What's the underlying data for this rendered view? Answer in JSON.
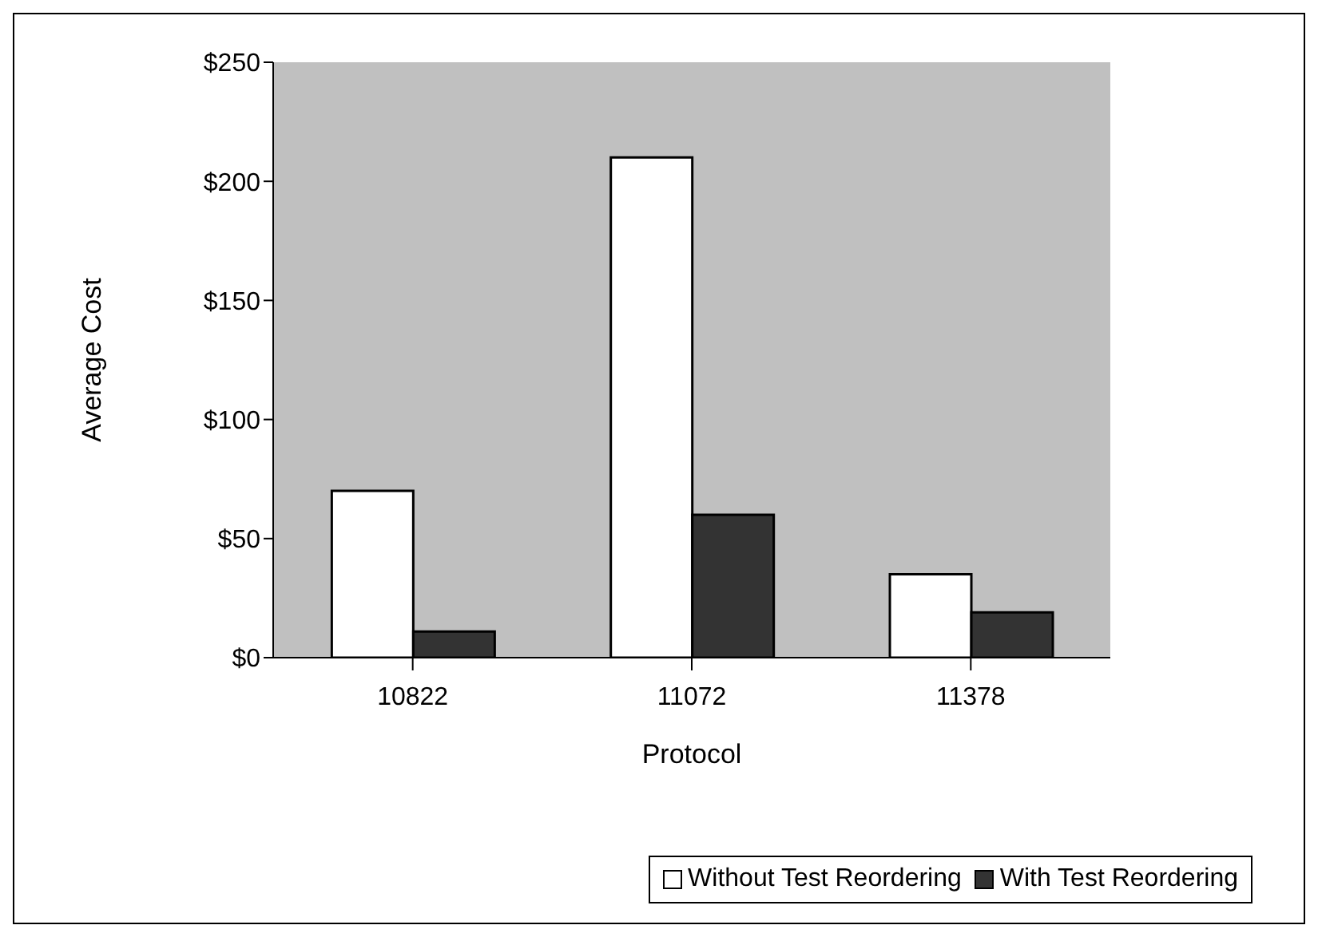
{
  "chart_data": {
    "type": "bar",
    "xlabel": "Protocol",
    "ylabel": "Average Cost",
    "categories": [
      "10822",
      "11072",
      "11378"
    ],
    "series": [
      {
        "name": "Without Test Reordering",
        "color": "#ffffff",
        "values": [
          70,
          210,
          35
        ]
      },
      {
        "name": "With Test Reordering",
        "color": "#333333",
        "values": [
          11,
          60,
          19
        ]
      }
    ],
    "ylim": [
      0,
      250
    ],
    "yticks": [
      {
        "value": 0,
        "label": "$0"
      },
      {
        "value": 50,
        "label": "$50"
      },
      {
        "value": 100,
        "label": "$100"
      },
      {
        "value": 150,
        "label": "$150"
      },
      {
        "value": 200,
        "label": "$200"
      },
      {
        "value": 250,
        "label": "$250"
      }
    ],
    "grid": false,
    "legend": "bottom right"
  }
}
